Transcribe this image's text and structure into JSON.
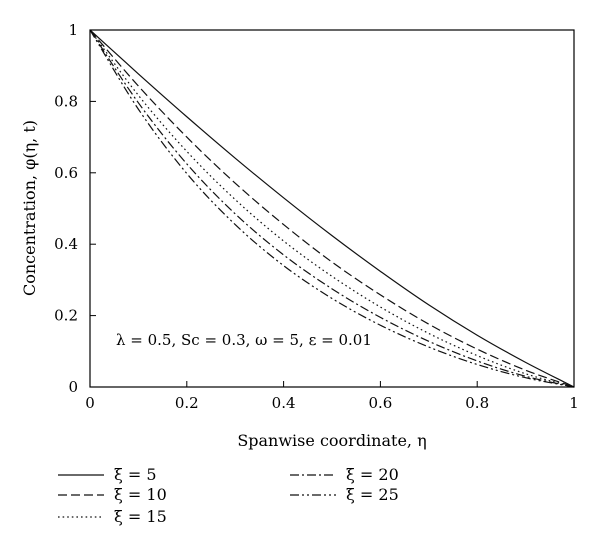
{
  "chart_data": {
    "type": "line",
    "title": "",
    "xlabel": "Spanwise coordinate, η",
    "ylabel": "Concentration, φ(η, t)",
    "xlim": [
      0,
      1
    ],
    "ylim": [
      0,
      1
    ],
    "x_ticks": [
      "0",
      "0.2",
      "0.4",
      "0.6",
      "0.8",
      "1"
    ],
    "y_ticks": [
      "0",
      "0.2",
      "0.4",
      "0.6",
      "0.8",
      "1"
    ],
    "grid": false,
    "legend_position": "bottom",
    "annotation": "λ = 0.5, Sc = 0.3, ω = 5, ε = 0.01",
    "x": [
      0,
      0.1,
      0.2,
      0.3,
      0.4,
      0.5,
      0.6,
      0.7,
      0.8,
      0.9,
      1.0
    ],
    "series": [
      {
        "name": "ξ = 5",
        "dash": "solid",
        "values": [
          1.0,
          0.877,
          0.757,
          0.641,
          0.53,
          0.424,
          0.324,
          0.23,
          0.145,
          0.069,
          0.0
        ]
      },
      {
        "name": "ξ = 10",
        "dash": "dash",
        "values": [
          1.0,
          0.843,
          0.7,
          0.571,
          0.455,
          0.35,
          0.258,
          0.176,
          0.106,
          0.047,
          0.0
        ]
      },
      {
        "name": "ξ = 15",
        "dash": "dot",
        "values": [
          1.0,
          0.817,
          0.66,
          0.525,
          0.409,
          0.31,
          0.224,
          0.15,
          0.088,
          0.037,
          0.0
        ]
      },
      {
        "name": "ξ = 20",
        "dash": "dashdot",
        "values": [
          1.0,
          0.796,
          0.625,
          0.485,
          0.37,
          0.275,
          0.195,
          0.128,
          0.073,
          0.03,
          0.0
        ]
      },
      {
        "name": "ξ = 25",
        "dash": "dashdotdot",
        "values": [
          1.0,
          0.778,
          0.598,
          0.455,
          0.34,
          0.248,
          0.173,
          0.112,
          0.063,
          0.026,
          0.0
        ]
      }
    ],
    "colors": {
      "line": "#111111",
      "axis": "#000000"
    }
  }
}
